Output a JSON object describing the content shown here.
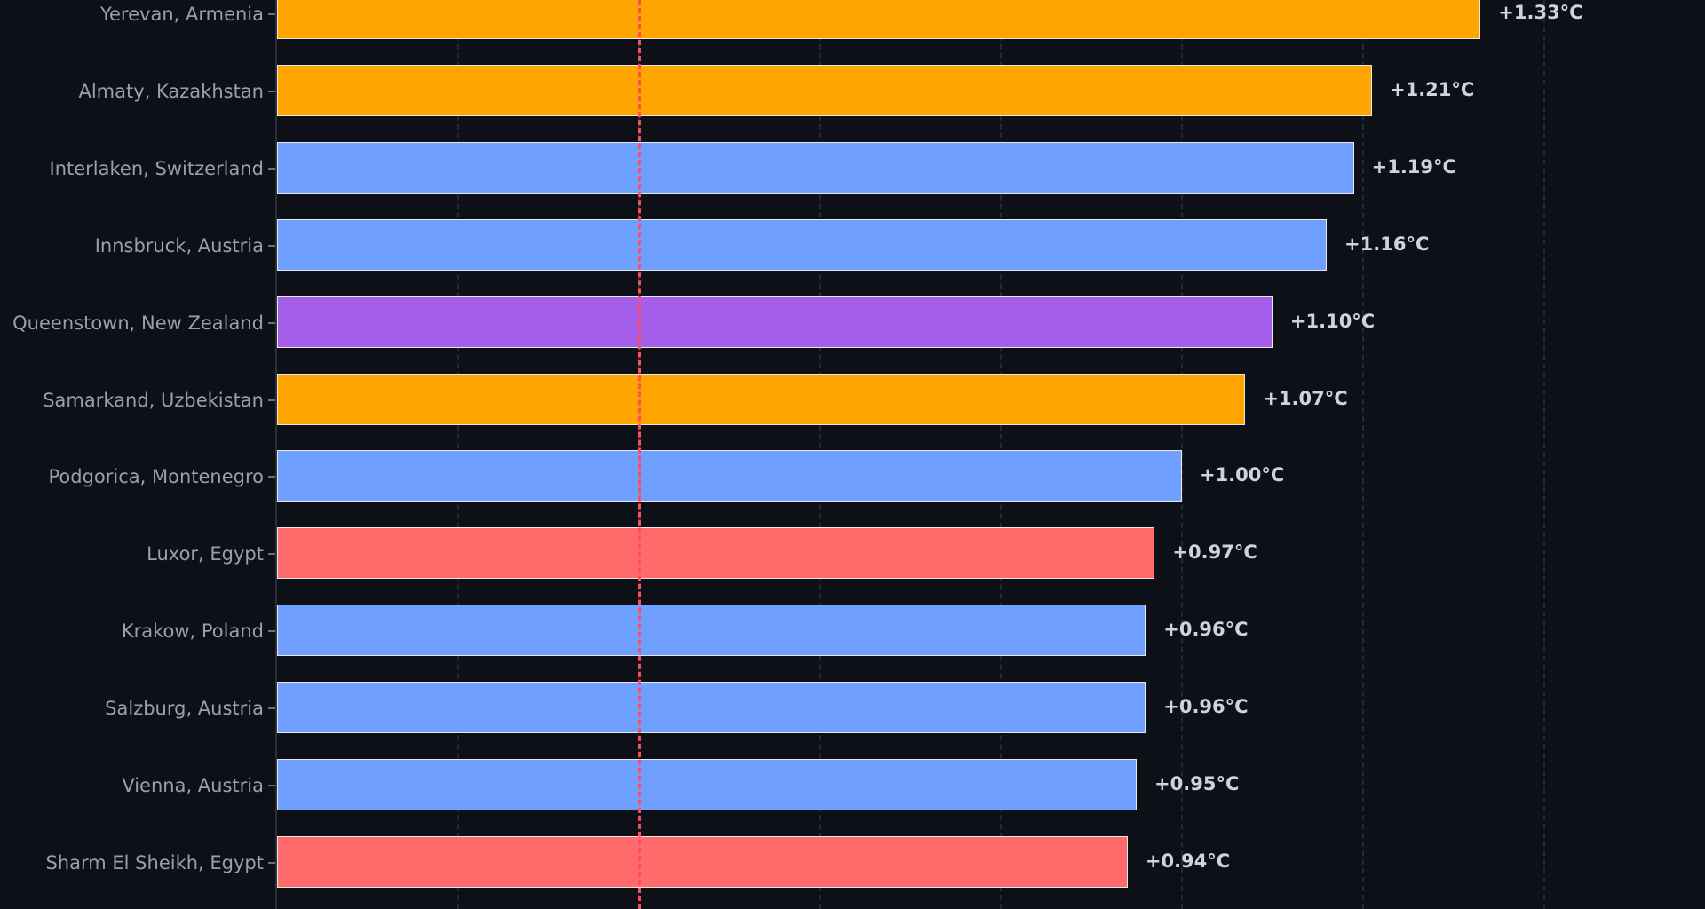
{
  "chart_data": {
    "type": "bar",
    "orientation": "horizontal",
    "title": "",
    "xlabel": "",
    "ylabel": "",
    "xlim": [
      0,
      1.58
    ],
    "grid": true,
    "grid_x_values": [
      0.2,
      0.4,
      0.6,
      0.8,
      1.0,
      1.2,
      1.4
    ],
    "reference_line": {
      "x": 0.4,
      "color": "#ff4d5e",
      "style": "dashed"
    },
    "categories": [
      "Yerevan, Armenia",
      "Almaty, Kazakhstan",
      "Interlaken, Switzerland",
      "Innsbruck, Austria",
      "Queenstown, New Zealand",
      "Samarkand, Uzbekistan",
      "Podgorica, Montenegro",
      "Luxor, Egypt",
      "Krakow, Poland",
      "Salzburg, Austria",
      "Vienna, Austria",
      "Sharm El Sheikh, Egypt"
    ],
    "values": [
      1.33,
      1.21,
      1.19,
      1.16,
      1.1,
      1.07,
      1.0,
      0.97,
      0.96,
      0.96,
      0.95,
      0.94
    ],
    "value_labels": [
      "+1.33°C",
      "+1.21°C",
      "+1.19°C",
      "+1.16°C",
      "+1.10°C",
      "+1.07°C",
      "+1.00°C",
      "+0.97°C",
      "+0.96°C",
      "+0.96°C",
      "+0.95°C",
      "+0.94°C"
    ],
    "bar_colors": [
      "#ffa500",
      "#ffa500",
      "#70a0ff",
      "#70a0ff",
      "#a45ee9",
      "#ffa500",
      "#70a0ff",
      "#ff6b6b",
      "#70a0ff",
      "#70a0ff",
      "#70a0ff",
      "#ff6b6b"
    ],
    "unit": "°C"
  },
  "colors": {
    "background": "#0d1017",
    "label_text": "#9aa0a8",
    "value_text": "#d0d4da",
    "reference_line": "#ff4d5e"
  }
}
